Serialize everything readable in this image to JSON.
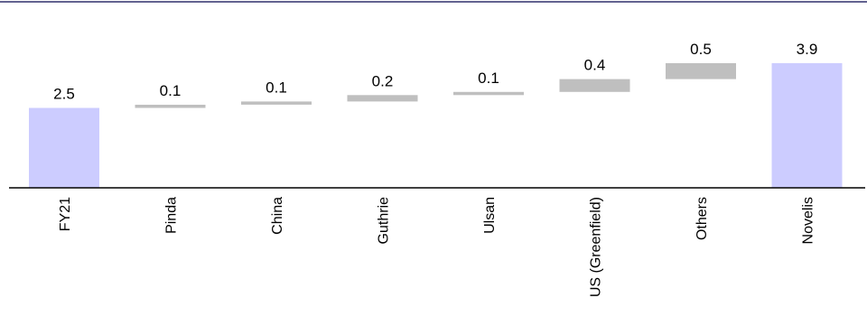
{
  "chart_data": {
    "type": "bar",
    "subtype": "waterfall",
    "categories": [
      "FY21",
      "Pinda",
      "China",
      "Guthrie",
      "Ulsan",
      "US (Greenfield)",
      "Others",
      "Novelis"
    ],
    "bars": [
      {
        "category": "FY21",
        "kind": "total",
        "start": 0,
        "end": 2.5,
        "label": "2.5"
      },
      {
        "category": "Pinda",
        "kind": "increment",
        "start": 2.5,
        "end": 2.6,
        "label": "0.1"
      },
      {
        "category": "China",
        "kind": "increment",
        "start": 2.6,
        "end": 2.7,
        "label": "0.1"
      },
      {
        "category": "Guthrie",
        "kind": "increment",
        "start": 2.7,
        "end": 2.9,
        "label": "0.2"
      },
      {
        "category": "Ulsan",
        "kind": "increment",
        "start": 2.9,
        "end": 3.0,
        "label": "0.1"
      },
      {
        "category": "US (Greenfield)",
        "kind": "increment",
        "start": 3.0,
        "end": 3.4,
        "label": "0.4"
      },
      {
        "category": "Others",
        "kind": "increment",
        "start": 3.4,
        "end": 3.9,
        "label": "0.5"
      },
      {
        "category": "Novelis",
        "kind": "total",
        "start": 0,
        "end": 3.9,
        "label": "3.9"
      }
    ],
    "title": "",
    "xlabel": "",
    "ylabel": "",
    "ylim": [
      0,
      4.2
    ],
    "grid": false,
    "legend": "none"
  },
  "colors": {
    "total": "#ccccff",
    "increment": "#bfbfbf",
    "axis": "#000000",
    "top_rule": "#2e2e6b"
  }
}
